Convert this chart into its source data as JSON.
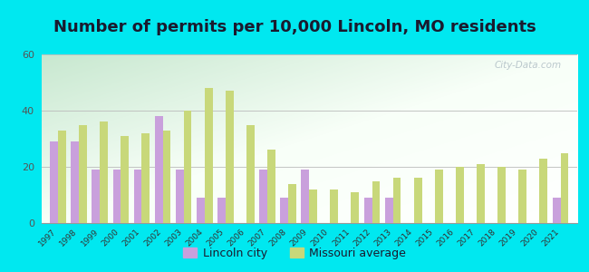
{
  "title": "Number of permits per 10,000 Lincoln, MO residents",
  "years": [
    1997,
    1998,
    1999,
    2000,
    2001,
    2002,
    2003,
    2004,
    2005,
    2006,
    2007,
    2008,
    2009,
    2010,
    2011,
    2012,
    2013,
    2014,
    2015,
    2016,
    2017,
    2018,
    2019,
    2020,
    2021
  ],
  "lincoln_city": [
    29,
    29,
    19,
    19,
    19,
    38,
    19,
    9,
    9,
    0,
    19,
    9,
    19,
    0,
    0,
    9,
    9,
    0,
    0,
    0,
    0,
    0,
    0,
    0,
    9
  ],
  "missouri_avg": [
    33,
    35,
    36,
    31,
    32,
    33,
    40,
    48,
    47,
    35,
    26,
    14,
    12,
    12,
    11,
    15,
    16,
    16,
    19,
    20,
    21,
    20,
    19,
    23,
    25
  ],
  "ylim": [
    0,
    60
  ],
  "yticks": [
    0,
    20,
    40,
    60
  ],
  "lincoln_color": "#c9a0dc",
  "missouri_color": "#c8d87a",
  "bg_outer": "#00e8f0",
  "bg_grad_top": "#c8e8d0",
  "bg_grad_bottom": "#f0fff8",
  "title_color": "#1a1a2e",
  "title_fontsize": 13,
  "legend_label_lincoln": "Lincoln city",
  "legend_label_missouri": "Missouri average",
  "bar_width": 0.38,
  "watermark": "City-Data.com"
}
